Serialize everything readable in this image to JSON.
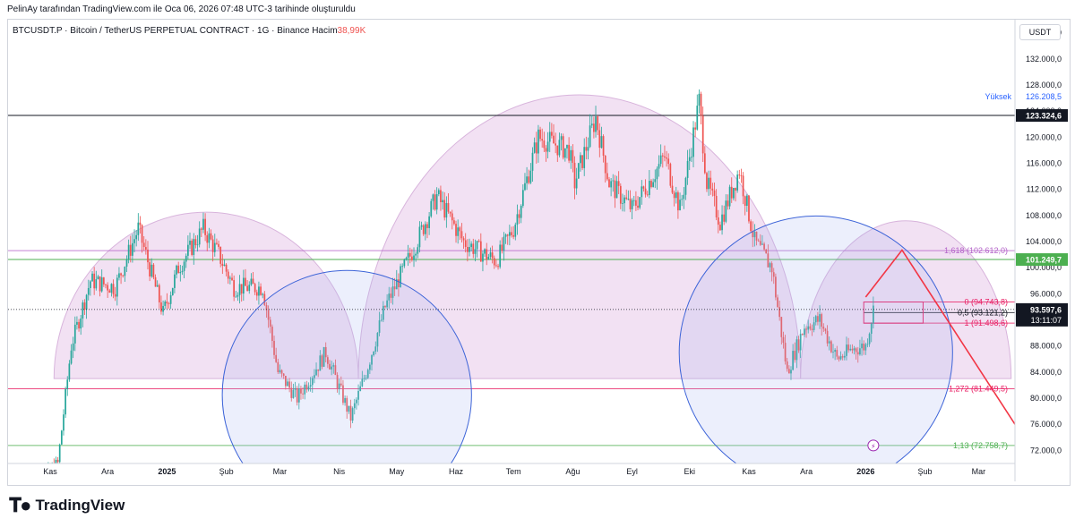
{
  "caption": "PelinAy tarafından TradingView.com ile Oca 06, 2026 07:48 UTC-3 tarihinde oluşturuldu",
  "symbol_line": {
    "text": "BTCUSDT.P · Bitcoin / TetherUS PERPETUAL CONTRACT · 1G · Binance",
    "volume_label": "Hacim",
    "volume_value": "38,99",
    "volume_suffix": "K"
  },
  "currency": "USDT",
  "footer_brand": "TradingView",
  "colors": {
    "up": "#26a69a",
    "down": "#ef5350",
    "fib_purple": "#b463c9",
    "fib_pink": "#e91e63",
    "fib_green": "#4caf50",
    "bubble": "#e7c9e9",
    "circle": "#3d64d8"
  },
  "chart_data": {
    "type": "candlestick",
    "instrument": "BTCUSDT.P",
    "timeframe": "1G",
    "y_axis": {
      "range": [
        70000,
        138000
      ],
      "ticks": [
        72000,
        76000,
        80000,
        84000,
        88000,
        92000,
        96000,
        100000,
        104000,
        108000,
        112000,
        116000,
        120000,
        124000,
        128000,
        132000,
        136000
      ],
      "tick_labels": [
        "72.000,0",
        "76.000,0",
        "80.000,0",
        "84.000,0",
        "88.000,0",
        "92.000,0",
        "96.000,0",
        "100.000,0",
        "104.000,0",
        "108.000,0",
        "112.000,0",
        "116.000,0",
        "120.000,0",
        "124.000,0",
        "128.000,0",
        "132.000,0",
        "136.000,0"
      ]
    },
    "x_axis": {
      "labels": [
        "Kas",
        "Ara",
        "2025",
        "Şub",
        "Mar",
        "Nis",
        "May",
        "Haz",
        "Tem",
        "Ağu",
        "Eyl",
        "Eki",
        "Kas",
        "Ara",
        "2026",
        "Şub",
        "Mar"
      ],
      "label_dates": [
        "2024-11-01",
        "2024-12-01",
        "2025-01-01",
        "2025-02-01",
        "2025-03-01",
        "2025-04-01",
        "2025-05-01",
        "2025-06-01",
        "2025-07-01",
        "2025-08-01",
        "2025-09-01",
        "2025-10-01",
        "2025-11-01",
        "2025-12-01",
        "2026-01-01",
        "2026-02-01",
        "2026-03-01"
      ],
      "bold": [
        "2025",
        "2026"
      ],
      "range": [
        "2024-10-10",
        "2026-03-20"
      ]
    },
    "price_path": [
      [
        "2024-10-20",
        66000
      ],
      [
        "2024-11-05",
        70000
      ],
      [
        "2024-11-12",
        88000
      ],
      [
        "2024-11-22",
        98000
      ],
      [
        "2024-12-05",
        97000
      ],
      [
        "2024-12-17",
        106000
      ],
      [
        "2024-12-30",
        93000
      ],
      [
        "2025-01-07",
        100000
      ],
      [
        "2025-01-20",
        106000
      ],
      [
        "2025-01-28",
        102000
      ],
      [
        "2025-02-05",
        97000
      ],
      [
        "2025-02-20",
        97000
      ],
      [
        "2025-02-28",
        84000
      ],
      [
        "2025-03-10",
        80000
      ],
      [
        "2025-03-25",
        87000
      ],
      [
        "2025-04-07",
        77000
      ],
      [
        "2025-04-15",
        84000
      ],
      [
        "2025-04-25",
        94000
      ],
      [
        "2025-05-10",
        103000
      ],
      [
        "2025-05-22",
        111000
      ],
      [
        "2025-06-05",
        104000
      ],
      [
        "2025-06-22",
        101000
      ],
      [
        "2025-07-01",
        106000
      ],
      [
        "2025-07-14",
        120000
      ],
      [
        "2025-07-30",
        118000
      ],
      [
        "2025-08-02",
        113000
      ],
      [
        "2025-08-13",
        123000
      ],
      [
        "2025-08-20",
        113000
      ],
      [
        "2025-09-01",
        109000
      ],
      [
        "2025-09-18",
        117000
      ],
      [
        "2025-09-26",
        109000
      ],
      [
        "2025-10-01",
        117000
      ],
      [
        "2025-10-06",
        125500
      ],
      [
        "2025-10-10",
        113000
      ],
      [
        "2025-10-17",
        107000
      ],
      [
        "2025-10-27",
        115000
      ],
      [
        "2025-11-04",
        104000
      ],
      [
        "2025-11-13",
        100000
      ],
      [
        "2025-11-21",
        84000
      ],
      [
        "2025-11-30",
        91000
      ],
      [
        "2025-12-08",
        92000
      ],
      [
        "2025-12-17",
        86000
      ],
      [
        "2025-12-25",
        87500
      ],
      [
        "2026-01-01",
        88000
      ],
      [
        "2026-01-05",
        93600
      ]
    ],
    "horizontal_levels": [
      {
        "price": 123324.6,
        "label": "123.324,6",
        "color": "#131722",
        "badge": true
      },
      {
        "price": 101249.7,
        "label": "101.249,7",
        "color": "#4caf50",
        "badge": true
      }
    ],
    "high_marker": {
      "label": "Yüksek",
      "value": "126.208,5",
      "price": 126208.5
    },
    "current_price": {
      "label": "93.597,6",
      "countdown": "13:11:07",
      "price": 93597.6
    },
    "fib_levels": [
      {
        "ratio": "1,618",
        "value": "102.612,0",
        "price": 102612.0,
        "text": "1,618 (102.612,0)",
        "color": "#b463c9"
      },
      {
        "ratio": "0",
        "value": "94.743,8",
        "price": 94743.8,
        "text": "0 (94.743,8)",
        "color": "#e91e63"
      },
      {
        "ratio": "0,5",
        "value": "93.121,2",
        "price": 93121.2,
        "text": "0,5 (93.121,2)",
        "color": "#131722"
      },
      {
        "ratio": "1",
        "value": "91.498,6",
        "price": 91498.6,
        "text": "1 (91.498,6)",
        "color": "#e91e63"
      },
      {
        "ratio": "1,272",
        "value": "81.449,5",
        "price": 81449.5,
        "text": "1,272 (81.449,5)",
        "color": "#e91e63"
      },
      {
        "ratio": "1,13",
        "value": "72.758,7",
        "price": 72758.7,
        "text": "1,13 (72.758,7)",
        "color": "#4caf50"
      }
    ],
    "annotations": [
      {
        "kind": "arc",
        "from": "2024-11-03",
        "to": "2025-04-11",
        "top_price": 108500,
        "base_price": 83000
      },
      {
        "kind": "arc",
        "from": "2025-04-11",
        "to": "2025-11-28",
        "top_price": 126500,
        "base_price": 83000
      },
      {
        "kind": "arc",
        "from": "2025-11-28",
        "to": "2026-03-18",
        "top_price": 107200,
        "base_price": 83000
      },
      {
        "kind": "circle",
        "center": [
          "2025-04-05",
          80500
        ],
        "radius_days": 31
      },
      {
        "kind": "circle",
        "center": [
          "2025-12-06",
          87000
        ],
        "radius_days": 34
      },
      {
        "kind": "arrow_path",
        "points": [
          [
            "2026-01-01",
            95500
          ],
          [
            "2026-01-20",
            102700
          ],
          [
            "2026-03-20",
            76000
          ]
        ]
      }
    ]
  }
}
